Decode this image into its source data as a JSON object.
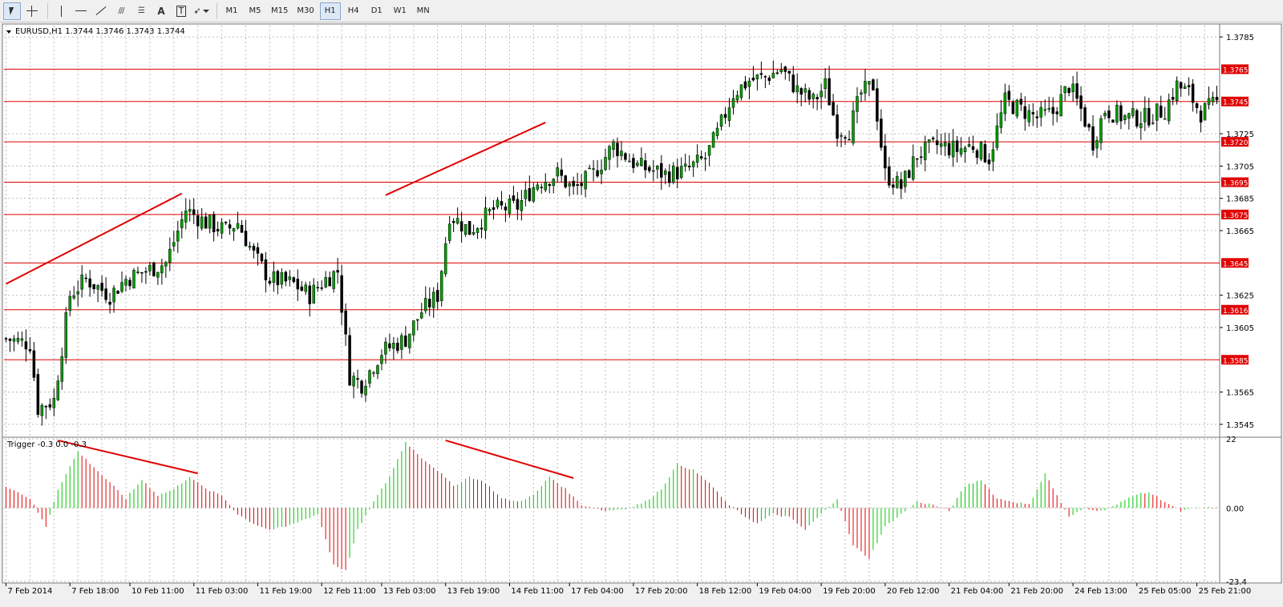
{
  "toolbar": {
    "tools": [
      {
        "name": "cursor-tool",
        "icon": "cursor-icon"
      },
      {
        "name": "crosshair-tool",
        "icon": "crosshair-icon"
      },
      {
        "name": "vertical-line-tool",
        "icon": "vertical-line-icon"
      },
      {
        "name": "horizontal-line-tool",
        "icon": "horizontal-line-icon"
      },
      {
        "name": "trendline-tool",
        "icon": "trendline-icon"
      },
      {
        "name": "equidistant-channel-tool",
        "icon": "channel-icon"
      },
      {
        "name": "fibonacci-tool",
        "icon": "fibonacci-icon"
      },
      {
        "name": "text-tool",
        "icon": "text-icon",
        "label": "A"
      },
      {
        "name": "text-label-tool",
        "icon": "text-label-icon",
        "label": "T"
      },
      {
        "name": "arrows-tool",
        "icon": "arrows-icon"
      }
    ],
    "timeframes": [
      "M1",
      "M5",
      "M15",
      "M30",
      "H1",
      "H4",
      "D1",
      "W1",
      "MN"
    ],
    "active_timeframe": "H1"
  },
  "colors": {
    "bull_candle": "#00a000",
    "bear_candle": "#000000",
    "level_line": "#e00000",
    "hist_up": "#00c800",
    "hist_down": "#e00000",
    "grid": "#bcbcbc"
  },
  "chart_data": [
    {
      "type": "candlestick",
      "title": "EURUSD,H1  1.3744 1.3746 1.3743 1.3744",
      "y_ticks": [
        "1.3785",
        "1.3725",
        "1.3705",
        "1.3685",
        "1.3665",
        "1.3625",
        "1.3605",
        "1.3565",
        "1.3545"
      ],
      "ylim": [
        1.3538,
        1.3792
      ],
      "x_ticks": [
        "7 Feb 2014",
        "7 Feb 18:00",
        "10 Feb 11:00",
        "11 Feb 03:00",
        "11 Feb 19:00",
        "12 Feb 11:00",
        "13 Feb 03:00",
        "13 Feb 19:00",
        "14 Feb 11:00",
        "17 Feb 04:00",
        "17 Feb 20:00",
        "18 Feb 12:00",
        "19 Feb 04:00",
        "19 Feb 20:00",
        "20 Feb 12:00",
        "21 Feb 04:00",
        "21 Feb 20:00",
        "24 Feb 13:00",
        "25 Feb 05:00",
        "25 Feb 21:00"
      ],
      "horizontal_levels": [
        1.3765,
        1.3745,
        1.372,
        1.3695,
        1.3675,
        1.3645,
        1.3616,
        1.3585
      ],
      "level_labels": [
        "1.3765",
        "1.3745",
        "1.3720",
        "1.3695",
        "1.3675",
        "1.3645",
        "1.3616",
        "1.3585"
      ],
      "price_anchors": [
        [
          0,
          1.3598
        ],
        [
          6,
          1.3595
        ],
        [
          8,
          1.3555
        ],
        [
          12,
          1.356
        ],
        [
          16,
          1.3625
        ],
        [
          20,
          1.3635
        ],
        [
          26,
          1.3625
        ],
        [
          30,
          1.3635
        ],
        [
          35,
          1.364
        ],
        [
          40,
          1.3645
        ],
        [
          45,
          1.3678
        ],
        [
          50,
          1.367
        ],
        [
          55,
          1.3665
        ],
        [
          58,
          1.367
        ],
        [
          62,
          1.365
        ],
        [
          66,
          1.3635
        ],
        [
          72,
          1.3632
        ],
        [
          76,
          1.3625
        ],
        [
          80,
          1.3635
        ],
        [
          83,
          1.364
        ],
        [
          86,
          1.3575
        ],
        [
          89,
          1.357
        ],
        [
          94,
          1.359
        ],
        [
          100,
          1.3598
        ],
        [
          104,
          1.3615
        ],
        [
          108,
          1.3625
        ],
        [
          111,
          1.3675
        ],
        [
          116,
          1.3665
        ],
        [
          122,
          1.3678
        ],
        [
          128,
          1.368
        ],
        [
          133,
          1.3695
        ],
        [
          138,
          1.37
        ],
        [
          142,
          1.369
        ],
        [
          147,
          1.37
        ],
        [
          152,
          1.3718
        ],
        [
          158,
          1.3705
        ],
        [
          165,
          1.37
        ],
        [
          170,
          1.3702
        ],
        [
          175,
          1.371
        ],
        [
          178,
          1.3725
        ],
        [
          182,
          1.375
        ],
        [
          186,
          1.3758
        ],
        [
          190,
          1.376
        ],
        [
          194,
          1.3765
        ],
        [
          198,
          1.3752
        ],
        [
          202,
          1.3745
        ],
        [
          205,
          1.3755
        ],
        [
          208,
          1.3728
        ],
        [
          211,
          1.3727
        ],
        [
          214,
          1.375
        ],
        [
          217,
          1.3755
        ],
        [
          220,
          1.37
        ],
        [
          224,
          1.3692
        ],
        [
          228,
          1.3712
        ],
        [
          233,
          1.3718
        ],
        [
          238,
          1.3715
        ],
        [
          242,
          1.3718
        ],
        [
          246,
          1.371
        ],
        [
          250,
          1.3745
        ],
        [
          254,
          1.374
        ],
        [
          258,
          1.3735
        ],
        [
          262,
          1.3738
        ],
        [
          266,
          1.3755
        ],
        [
          269,
          1.374
        ],
        [
          272,
          1.372
        ],
        [
          275,
          1.374
        ],
        [
          280,
          1.3735
        ],
        [
          285,
          1.3735
        ],
        [
          290,
          1.374
        ],
        [
          293,
          1.3755
        ],
        [
          296,
          1.375
        ],
        [
          299,
          1.3738
        ],
        [
          303,
          1.3744
        ]
      ],
      "drawn_trendlines": [
        {
          "from": [
            0,
            1.3632
          ],
          "to": [
            44,
            1.3688
          ]
        },
        {
          "from": [
            95,
            1.3687
          ],
          "to": [
            135,
            1.3732
          ]
        }
      ]
    },
    {
      "type": "histogram",
      "title": "Trigger -0.3 0.0 -0.3",
      "y_ticks": [
        "22",
        "0.00",
        "-23.4"
      ],
      "ylim": [
        -23.4,
        22
      ],
      "value_anchors": [
        [
          0,
          7
        ],
        [
          6,
          3
        ],
        [
          10,
          -6
        ],
        [
          13,
          6
        ],
        [
          18,
          18
        ],
        [
          22,
          13
        ],
        [
          26,
          8
        ],
        [
          30,
          3
        ],
        [
          34,
          9
        ],
        [
          38,
          4
        ],
        [
          42,
          6
        ],
        [
          46,
          10
        ],
        [
          50,
          6
        ],
        [
          54,
          4
        ],
        [
          58,
          -2
        ],
        [
          62,
          -5
        ],
        [
          66,
          -7
        ],
        [
          70,
          -6
        ],
        [
          74,
          -4
        ],
        [
          78,
          -2
        ],
        [
          82,
          -18
        ],
        [
          85,
          -20
        ],
        [
          88,
          -7
        ],
        [
          92,
          2
        ],
        [
          96,
          10
        ],
        [
          100,
          21
        ],
        [
          104,
          16
        ],
        [
          108,
          12
        ],
        [
          112,
          7
        ],
        [
          116,
          10
        ],
        [
          120,
          8
        ],
        [
          124,
          3
        ],
        [
          128,
          2
        ],
        [
          132,
          4
        ],
        [
          136,
          10
        ],
        [
          140,
          6
        ],
        [
          144,
          1
        ],
        [
          150,
          -1
        ],
        [
          156,
          0
        ],
        [
          160,
          2
        ],
        [
          164,
          6
        ],
        [
          168,
          14
        ],
        [
          172,
          12
        ],
        [
          176,
          8
        ],
        [
          180,
          2
        ],
        [
          184,
          -2
        ],
        [
          188,
          -5
        ],
        [
          192,
          -2
        ],
        [
          196,
          -3
        ],
        [
          200,
          -7
        ],
        [
          204,
          -2
        ],
        [
          208,
          3
        ],
        [
          212,
          -12
        ],
        [
          216,
          -16
        ],
        [
          220,
          -6
        ],
        [
          224,
          -2
        ],
        [
          228,
          2
        ],
        [
          232,
          1
        ],
        [
          236,
          -1
        ],
        [
          240,
          7
        ],
        [
          244,
          9
        ],
        [
          248,
          3
        ],
        [
          252,
          2
        ],
        [
          256,
          1
        ],
        [
          260,
          11
        ],
        [
          263,
          4
        ],
        [
          266,
          -3
        ],
        [
          270,
          0
        ],
        [
          274,
          -1
        ],
        [
          278,
          1
        ],
        [
          282,
          4
        ],
        [
          286,
          5
        ],
        [
          290,
          2
        ],
        [
          294,
          -1
        ],
        [
          298,
          0
        ],
        [
          303,
          0
        ]
      ],
      "drawn_trendlines": [
        {
          "from": [
            13,
            21.5
          ],
          "to": [
            48,
            11
          ]
        },
        {
          "from": [
            110,
            21.5
          ],
          "to": [
            142,
            9.5
          ]
        }
      ]
    }
  ]
}
